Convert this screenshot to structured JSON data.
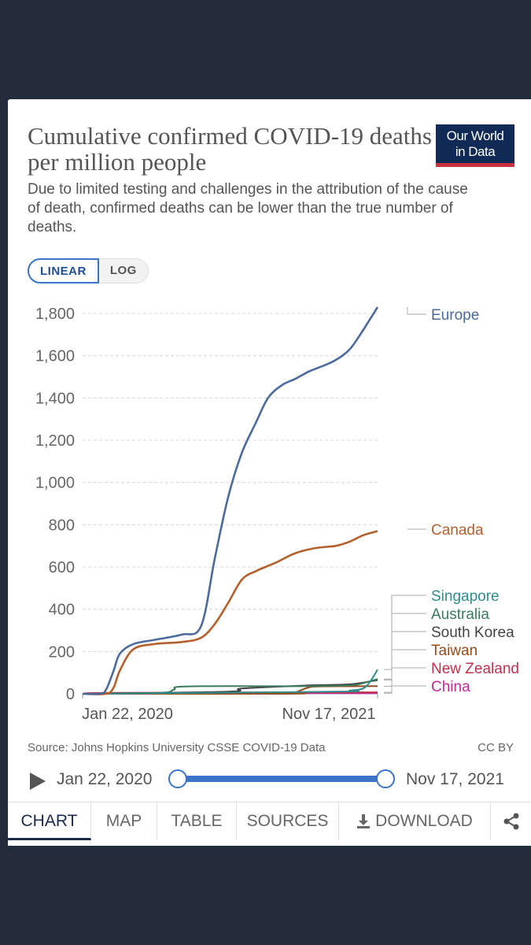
{
  "header": {
    "title": "Cumulative confirmed COVID-19 deaths per million people",
    "subtitle": "Due to limited testing and challenges in the attribution of the cause of death, confirmed deaths can be lower than the true number of deaths.",
    "logo_line1": "Our World",
    "logo_line2": "in Data"
  },
  "scale_toggle": {
    "linear": "LINEAR",
    "log": "LOG",
    "selected": "LINEAR"
  },
  "footer": {
    "source": "Source: Johns Hopkins University CSSE COVID-19 Data",
    "license": "CC BY"
  },
  "timeline": {
    "start": "Jan 22, 2020",
    "end": "Nov 17, 2021"
  },
  "tabs": [
    "CHART",
    "MAP",
    "TABLE",
    "SOURCES",
    "DOWNLOAD"
  ],
  "tabs_active": "CHART",
  "icons": {
    "download": "download-icon",
    "share": "share-icon",
    "play": "play-icon"
  },
  "colors": {
    "Europe": "#4c6a9c",
    "Canada": "#b4602d",
    "Singapore": "#2f8c8c",
    "Australia": "#3a7a5e",
    "South Korea": "#444444",
    "Taiwan": "#9a4a1a",
    "New Zealand": "#c0314c",
    "China": "#c22a9a"
  },
  "chart_data": {
    "type": "line",
    "title": "Cumulative confirmed COVID-19 deaths per million people",
    "ylim": [
      0,
      1800
    ],
    "yticks": [
      0,
      200,
      400,
      600,
      800,
      1000,
      1200,
      1400,
      1600,
      1800
    ],
    "ytick_labels": [
      "0",
      "200",
      "400",
      "600",
      "800",
      "1,000",
      "1,200",
      "1,400",
      "1,600",
      "1,800"
    ],
    "x_tick_labels": [
      "Jan 22, 2020",
      "Nov 17, 2021"
    ],
    "xlim": [
      "2020-01-22",
      "2021-11-17"
    ],
    "grid": true,
    "series": [
      {
        "name": "Europe",
        "x": [
          "2020-01-22",
          "2020-03-01",
          "2020-03-15",
          "2020-04-01",
          "2020-04-15",
          "2020-05-15",
          "2020-07-01",
          "2020-09-01",
          "2020-10-15",
          "2020-11-15",
          "2020-12-15",
          "2021-01-15",
          "2021-02-15",
          "2021-03-15",
          "2021-04-15",
          "2021-05-15",
          "2021-06-15",
          "2021-07-15",
          "2021-08-15",
          "2021-09-15",
          "2021-10-15",
          "2021-11-17"
        ],
        "y": [
          0,
          0,
          20,
          110,
          190,
          235,
          255,
          280,
          320,
          640,
          930,
          1140,
          1280,
          1400,
          1460,
          1490,
          1525,
          1550,
          1580,
          1630,
          1720,
          1830
        ]
      },
      {
        "name": "Canada",
        "x": [
          "2020-01-22",
          "2020-03-15",
          "2020-04-01",
          "2020-04-15",
          "2020-05-15",
          "2020-07-01",
          "2020-09-01",
          "2020-10-15",
          "2020-11-15",
          "2020-12-15",
          "2021-01-15",
          "2021-02-15",
          "2021-04-01",
          "2021-05-15",
          "2021-07-01",
          "2021-08-15",
          "2021-09-15",
          "2021-10-15",
          "2021-11-17"
        ],
        "y": [
          0,
          0,
          30,
          110,
          210,
          235,
          245,
          265,
          330,
          430,
          540,
          580,
          620,
          665,
          690,
          700,
          720,
          750,
          770
        ]
      },
      {
        "name": "Singapore",
        "x": [
          "2020-01-22",
          "2021-08-15",
          "2021-09-15",
          "2021-10-15",
          "2021-11-01",
          "2021-11-17"
        ],
        "y": [
          0,
          10,
          15,
          25,
          60,
          115
        ]
      },
      {
        "name": "Australia",
        "x": [
          "2020-01-22",
          "2020-07-15",
          "2020-08-15",
          "2020-09-15",
          "2021-06-15",
          "2021-09-15",
          "2021-10-15",
          "2021-11-17"
        ],
        "y": [
          0,
          5,
          20,
          35,
          36,
          40,
          50,
          70
        ]
      },
      {
        "name": "South Korea",
        "x": [
          "2020-01-22",
          "2020-12-15",
          "2021-01-15",
          "2021-06-15",
          "2021-09-15",
          "2021-11-17"
        ],
        "y": [
          0,
          10,
          25,
          40,
          45,
          65
        ]
      },
      {
        "name": "Taiwan",
        "x": [
          "2020-01-22",
          "2021-05-01",
          "2021-05-20",
          "2021-06-15",
          "2021-07-15",
          "2021-11-17"
        ],
        "y": [
          0,
          0,
          10,
          30,
          35,
          36
        ]
      },
      {
        "name": "New Zealand",
        "x": [
          "2020-01-22",
          "2020-04-15",
          "2021-11-17"
        ],
        "y": [
          0,
          5,
          7
        ]
      },
      {
        "name": "China",
        "x": [
          "2020-01-22",
          "2020-04-15",
          "2021-11-17"
        ],
        "y": [
          0,
          3,
          3
        ]
      }
    ]
  }
}
